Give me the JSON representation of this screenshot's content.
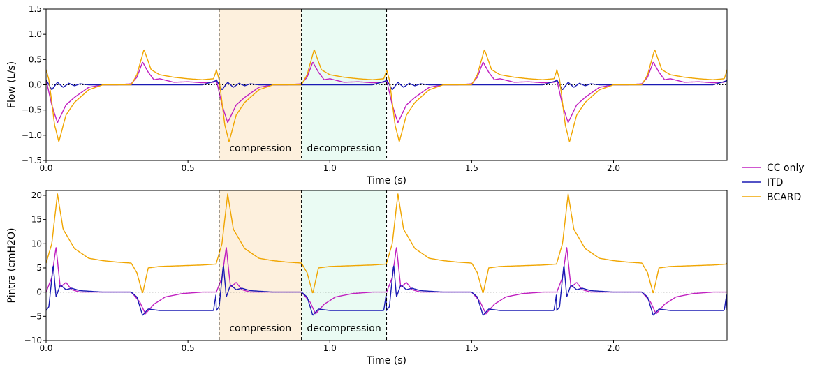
{
  "legend": {
    "placement": "right",
    "items": [
      {
        "label": "CC only",
        "color": "#c020c0"
      },
      {
        "label": "ITD",
        "color": "#1a1ab4"
      },
      {
        "label": "BCARD",
        "color": "#f0a500"
      }
    ]
  },
  "phases": [
    {
      "label": "compression",
      "x0": 0.61,
      "x1": 0.9,
      "fill": "#fdf0dd"
    },
    {
      "label": "decompression",
      "x0": 0.9,
      "x1": 1.2,
      "fill": "#eafbf3"
    }
  ],
  "chart_data": [
    {
      "type": "line",
      "title": "",
      "xlabel": "Time (s)",
      "ylabel": "Flow (L/s)",
      "xlim": [
        0.0,
        2.4
      ],
      "ylim": [
        -1.5,
        1.5
      ],
      "xticks": [
        0.0,
        0.5,
        1.0,
        1.5,
        2.0
      ],
      "xtick_labels": [
        "0.0",
        "0.5",
        "1.0",
        "1.5",
        "2.0"
      ],
      "yticks": [
        -1.5,
        -1.0,
        -0.5,
        0.0,
        0.5,
        1.0,
        1.5
      ],
      "ytick_labels": [
        "−1.5",
        "−1.0",
        "−0.5",
        "0.0",
        "0.5",
        "1.0",
        "1.5"
      ],
      "grid": false,
      "zero_line": true,
      "period": 0.6,
      "series": [
        {
          "name": "CC only",
          "color": "#c020c0",
          "x": [
            0.0,
            0.02,
            0.04,
            0.07,
            0.1,
            0.15,
            0.2,
            0.25,
            0.3,
            0.32,
            0.34,
            0.36,
            0.38,
            0.4,
            0.45,
            0.5,
            0.55,
            0.59,
            0.6
          ],
          "y": [
            0.1,
            -0.4,
            -0.75,
            -0.4,
            -0.25,
            -0.05,
            0.0,
            0.0,
            0.02,
            0.15,
            0.45,
            0.25,
            0.1,
            0.12,
            0.05,
            0.06,
            0.04,
            0.05,
            0.1
          ]
        },
        {
          "name": "ITD",
          "color": "#1a1ab4",
          "x": [
            0.0,
            0.02,
            0.04,
            0.06,
            0.08,
            0.1,
            0.12,
            0.15,
            0.2,
            0.25,
            0.3,
            0.35,
            0.4,
            0.45,
            0.5,
            0.55,
            0.6
          ],
          "y": [
            0.1,
            -0.1,
            0.05,
            -0.05,
            0.03,
            -0.02,
            0.02,
            0.0,
            0.0,
            0.0,
            0.0,
            0.0,
            0.0,
            0.0,
            0.0,
            0.0,
            0.08
          ]
        },
        {
          "name": "BCARD",
          "color": "#f0a500",
          "x": [
            0.0,
            0.01,
            0.03,
            0.045,
            0.07,
            0.1,
            0.15,
            0.2,
            0.25,
            0.3,
            0.32,
            0.345,
            0.37,
            0.4,
            0.45,
            0.5,
            0.55,
            0.59,
            0.6
          ],
          "y": [
            0.3,
            0.1,
            -0.8,
            -1.13,
            -0.6,
            -0.35,
            -0.1,
            0.0,
            0.0,
            0.0,
            0.2,
            0.7,
            0.3,
            0.2,
            0.15,
            0.12,
            0.1,
            0.12,
            0.28
          ]
        }
      ]
    },
    {
      "type": "line",
      "title": "",
      "xlabel": "Time (s)",
      "ylabel": "Pintra (cmH2O)",
      "xlim": [
        0.0,
        2.4
      ],
      "ylim": [
        -10,
        21
      ],
      "xticks": [
        0.0,
        0.5,
        1.0,
        1.5,
        2.0
      ],
      "xtick_labels": [
        "0.0",
        "0.5",
        "1.0",
        "1.5",
        "2.0"
      ],
      "yticks": [
        -10,
        -5,
        0,
        5,
        10,
        15,
        20
      ],
      "ytick_labels": [
        "−10",
        "−5",
        "0",
        "5",
        "10",
        "15",
        "20"
      ],
      "grid": false,
      "zero_line": true,
      "period": 0.6,
      "series": [
        {
          "name": "CC only",
          "color": "#c020c0",
          "x": [
            0.0,
            0.02,
            0.035,
            0.05,
            0.07,
            0.09,
            0.12,
            0.2,
            0.3,
            0.33,
            0.35,
            0.38,
            0.42,
            0.48,
            0.55,
            0.6
          ],
          "y": [
            0.0,
            3.0,
            9.3,
            1.0,
            2.0,
            0.5,
            0.0,
            0.0,
            0.0,
            -2.0,
            -4.5,
            -2.5,
            -1.0,
            -0.3,
            0.0,
            0.0
          ]
        },
        {
          "name": "ITD",
          "color": "#1a1ab4",
          "x": [
            0.0,
            0.01,
            0.025,
            0.035,
            0.05,
            0.07,
            0.09,
            0.12,
            0.2,
            0.3,
            0.32,
            0.34,
            0.36,
            0.4,
            0.5,
            0.59,
            0.6
          ],
          "y": [
            -3.8,
            -3.0,
            5.8,
            -1.0,
            1.5,
            0.5,
            0.8,
            0.3,
            0.0,
            0.0,
            -1.0,
            -4.8,
            -3.5,
            -3.8,
            -3.8,
            -3.8,
            0.0
          ]
        },
        {
          "name": "BCARD",
          "color": "#f0a500",
          "x": [
            0.0,
            0.02,
            0.04,
            0.06,
            0.08,
            0.1,
            0.15,
            0.2,
            0.25,
            0.3,
            0.32,
            0.34,
            0.36,
            0.4,
            0.45,
            0.5,
            0.55,
            0.6
          ],
          "y": [
            6.0,
            10.0,
            20.3,
            13.0,
            11.0,
            9.0,
            7.0,
            6.5,
            6.2,
            6.0,
            4.0,
            -0.3,
            5.0,
            5.3,
            5.4,
            5.5,
            5.6,
            5.8
          ]
        }
      ]
    }
  ]
}
